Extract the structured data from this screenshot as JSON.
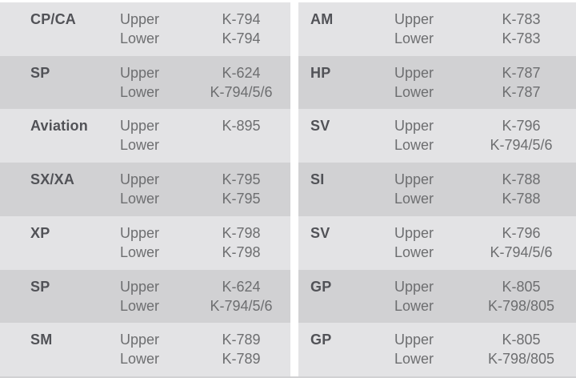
{
  "colors": {
    "background": "#ffffff",
    "row_light": "#e3e3e5",
    "row_dark": "#d1d1d3",
    "label_text": "#515257",
    "body_text": "#6d6e70"
  },
  "table": {
    "left_rows": [
      {
        "model": "CP/CA",
        "upper_label": "Upper",
        "lower_label": "Lower",
        "upper_code": "K-794",
        "lower_code": "K-794"
      },
      {
        "model": "SP",
        "upper_label": "Upper",
        "lower_label": "Lower",
        "upper_code": "K-624",
        "lower_code": "K-794/5/6"
      },
      {
        "model": "Aviation",
        "upper_label": "Upper",
        "lower_label": "Lower",
        "upper_code": "K-895",
        "lower_code": ""
      },
      {
        "model": "SX/XA",
        "upper_label": "Upper",
        "lower_label": "Lower",
        "upper_code": "K-795",
        "lower_code": "K-795"
      },
      {
        "model": "XP",
        "upper_label": "Upper",
        "lower_label": "Lower",
        "upper_code": "K-798",
        "lower_code": "K-798"
      },
      {
        "model": "SP",
        "upper_label": "Upper",
        "lower_label": "Lower",
        "upper_code": "K-624",
        "lower_code": "K-794/5/6"
      },
      {
        "model": "SM",
        "upper_label": "Upper",
        "lower_label": "Lower",
        "upper_code": "K-789",
        "lower_code": "K-789"
      }
    ],
    "right_rows": [
      {
        "model": "AM",
        "upper_label": "Upper",
        "lower_label": "Lower",
        "upper_code": "K-783",
        "lower_code": "K-783"
      },
      {
        "model": "HP",
        "upper_label": "Upper",
        "lower_label": "Lower",
        "upper_code": "K-787",
        "lower_code": "K-787"
      },
      {
        "model": "SV",
        "upper_label": "Upper",
        "lower_label": "Lower",
        "upper_code": "K-796",
        "lower_code": "K-794/5/6"
      },
      {
        "model": "SI",
        "upper_label": "Upper",
        "lower_label": "Lower",
        "upper_code": "K-788",
        "lower_code": "K-788"
      },
      {
        "model": "SV",
        "upper_label": "Upper",
        "lower_label": "Lower",
        "upper_code": "K-796",
        "lower_code": "K-794/5/6"
      },
      {
        "model": "GP",
        "upper_label": "Upper",
        "lower_label": "Lower",
        "upper_code": "K-805",
        "lower_code": "K-798/805"
      },
      {
        "model": "GP",
        "upper_label": "Upper",
        "lower_label": "Lower",
        "upper_code": "K-805",
        "lower_code": "K-798/805"
      }
    ]
  }
}
